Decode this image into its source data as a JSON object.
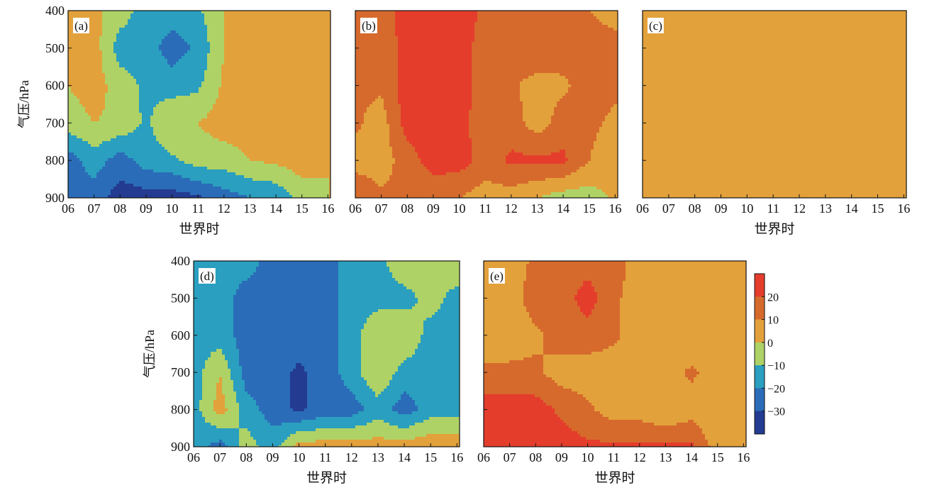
{
  "palette": {
    "levels": [
      -40,
      -30,
      -20,
      -10,
      0,
      10,
      20,
      30
    ],
    "colors": [
      "#233b91",
      "#2b6cb8",
      "#2a9fbf",
      "#aed266",
      "#e3a13b",
      "#d66a2c",
      "#e53d2c"
    ]
  },
  "colorbar": {
    "tick_values": [
      20,
      10,
      0,
      -10,
      -20,
      -30
    ],
    "tick_labels": [
      "20",
      "10",
      "0",
      "−10",
      "−20",
      "−30"
    ]
  },
  "chart_data": [
    {
      "type": "heatmap",
      "panel_label": "(a)",
      "xlabel": "世界时",
      "ylabel": "气压/hPa",
      "x": [
        6,
        7,
        8,
        9,
        10,
        11,
        12,
        13,
        14,
        15,
        16
      ],
      "x_tick_labels": [
        "06",
        "07",
        "08",
        "09",
        "10",
        "11",
        "12",
        "13",
        "14",
        "15",
        "16"
      ],
      "y": [
        400,
        500,
        600,
        700,
        800,
        900
      ],
      "y_tick_labels": [
        "400",
        "500",
        "600",
        "700",
        "800",
        "900"
      ],
      "xlim": [
        6,
        16.1
      ],
      "ylim": [
        900,
        400
      ],
      "z": [
        [
          0,
          2,
          -5,
          -15,
          -15,
          -12,
          0,
          0,
          8,
          0,
          0
        ],
        [
          0,
          5,
          -15,
          -15,
          -25,
          -18,
          0,
          5,
          8,
          0,
          0
        ],
        [
          0,
          5,
          -5,
          -12,
          -15,
          -12,
          2,
          5,
          5,
          0,
          0
        ],
        [
          -5,
          0,
          -2,
          -12,
          0,
          0,
          5,
          5,
          0,
          0,
          0
        ],
        [
          -25,
          -15,
          -25,
          -15,
          -12,
          -5,
          -5,
          0,
          2,
          5,
          0
        ],
        [
          -25,
          -25,
          -35,
          -35,
          -35,
          -32,
          -25,
          -20,
          -18,
          -5,
          0
        ]
      ]
    },
    {
      "type": "heatmap",
      "panel_label": "(b)",
      "xlabel": "",
      "ylabel": "",
      "x": [
        6,
        7,
        8,
        9,
        10,
        11,
        12,
        13,
        14,
        15,
        16
      ],
      "x_tick_labels": [
        "06",
        "07",
        "08",
        "09",
        "10",
        "11",
        "12",
        "13",
        "14",
        "15",
        "16"
      ],
      "y": [
        400,
        500,
        600,
        700,
        800,
        900
      ],
      "y_tick_labels": [
        "",
        "",
        "",
        "",
        "",
        ""
      ],
      "xlim": [
        6,
        16.1
      ],
      "ylim": [
        900,
        400
      ],
      "z": [
        [
          12,
          15,
          25,
          25,
          25,
          18,
          15,
          15,
          15,
          10,
          8
        ],
        [
          15,
          12,
          25,
          25,
          25,
          15,
          15,
          20,
          15,
          12,
          12
        ],
        [
          12,
          12,
          25,
          25,
          25,
          15,
          12,
          5,
          8,
          15,
          12
        ],
        [
          12,
          5,
          25,
          25,
          25,
          12,
          15,
          5,
          15,
          12,
          8
        ],
        [
          5,
          5,
          15,
          25,
          25,
          15,
          22,
          22,
          22,
          10,
          5
        ],
        [
          20,
          12,
          12,
          12,
          10,
          5,
          5,
          0,
          -5,
          -5,
          2
        ]
      ]
    },
    {
      "type": "heatmap",
      "panel_label": "(c)",
      "xlabel": "世界时",
      "ylabel": "",
      "x": [
        6,
        7,
        8,
        9,
        10,
        11,
        12,
        13,
        14,
        15,
        16
      ],
      "x_tick_labels": [
        "06",
        "07",
        "08",
        "09",
        "10",
        "11",
        "12",
        "13",
        "14",
        "15",
        "16"
      ],
      "y": [
        400,
        500,
        600,
        700,
        800,
        900
      ],
      "y_tick_labels": [
        "",
        "",
        "",
        "",
        "",
        ""
      ],
      "xlim": [
        6,
        16.1
      ],
      "ylim": [
        900,
        400
      ],
      "z": [
        [
          5,
          5,
          5,
          5,
          5,
          5,
          5,
          5,
          5,
          5,
          5
        ],
        [
          5,
          5,
          2,
          5,
          5,
          5,
          5,
          5,
          5,
          5,
          5
        ],
        [
          5,
          5,
          5,
          5,
          5,
          5,
          5,
          5,
          5,
          5,
          5
        ],
        [
          5,
          5,
          5,
          0,
          5,
          5,
          5,
          5,
          5,
          5,
          5
        ],
        [
          5,
          5,
          5,
          5,
          5,
          5,
          5,
          5,
          5,
          0,
          5
        ],
        [
          5,
          5,
          5,
          5,
          5,
          5,
          5,
          5,
          5,
          0,
          0
        ]
      ]
    },
    {
      "type": "heatmap",
      "panel_label": "(d)",
      "xlabel": "世界时",
      "ylabel": "气压/hPa",
      "x": [
        6,
        7,
        8,
        9,
        10,
        11,
        12,
        13,
        14,
        15,
        16
      ],
      "x_tick_labels": [
        "06",
        "07",
        "08",
        "09",
        "10",
        "11",
        "12",
        "13",
        "14",
        "15",
        "16"
      ],
      "y": [
        400,
        500,
        600,
        700,
        800,
        900
      ],
      "y_tick_labels": [
        "400",
        "500",
        "600",
        "700",
        "800",
        "900"
      ],
      "xlim": [
        6,
        16.1
      ],
      "ylim": [
        900,
        400
      ],
      "z": [
        [
          -15,
          -15,
          -15,
          -25,
          -25,
          -25,
          -15,
          -15,
          0,
          0,
          0
        ],
        [
          -15,
          -15,
          -25,
          -25,
          -25,
          -25,
          -15,
          -15,
          -15,
          -5,
          -15
        ],
        [
          -15,
          -15,
          -25,
          -25,
          -25,
          -25,
          -15,
          0,
          0,
          -15,
          -15
        ],
        [
          -15,
          0,
          -25,
          -25,
          -32,
          -25,
          -15,
          0,
          -15,
          -15,
          -15
        ],
        [
          -15,
          5,
          -15,
          -25,
          -32,
          -25,
          -25,
          -15,
          -25,
          -15,
          -15
        ],
        [
          -15,
          -25,
          -5,
          -15,
          5,
          5,
          5,
          5,
          5,
          8,
          8
        ]
      ]
    },
    {
      "type": "heatmap",
      "panel_label": "(e)",
      "xlabel": "世界时",
      "ylabel": "",
      "x": [
        6,
        7,
        8,
        9,
        10,
        11,
        12,
        13,
        14,
        15,
        16
      ],
      "x_tick_labels": [
        "06",
        "07",
        "08",
        "09",
        "10",
        "11",
        "12",
        "13",
        "14",
        "15",
        "16"
      ],
      "y": [
        400,
        500,
        600,
        700,
        800,
        900
      ],
      "y_tick_labels": [
        "",
        "",
        "",
        "",
        "",
        ""
      ],
      "xlim": [
        6,
        16.1
      ],
      "ylim": [
        900,
        400
      ],
      "z": [
        [
          5,
          5,
          12,
          15,
          15,
          15,
          5,
          5,
          5,
          5,
          5
        ],
        [
          5,
          5,
          15,
          15,
          25,
          12,
          5,
          5,
          5,
          5,
          5
        ],
        [
          5,
          5,
          8,
          15,
          15,
          12,
          5,
          5,
          0,
          5,
          5
        ],
        [
          12,
          12,
          12,
          5,
          5,
          5,
          5,
          5,
          12,
          5,
          5
        ],
        [
          25,
          25,
          25,
          18,
          12,
          5,
          5,
          0,
          5,
          0,
          0
        ],
        [
          25,
          25,
          25,
          25,
          22,
          22,
          22,
          22,
          22,
          5,
          5
        ]
      ]
    }
  ]
}
